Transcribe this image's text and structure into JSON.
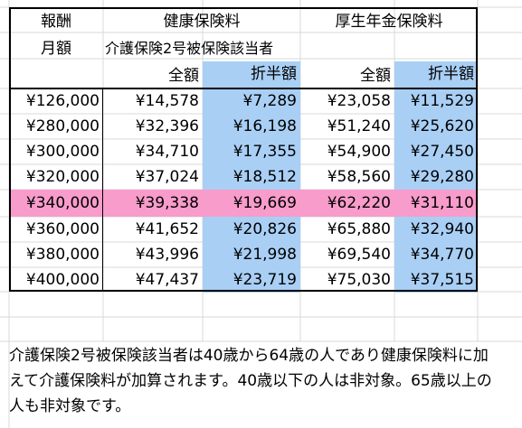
{
  "header": {
    "col_salary_top": "報酬",
    "col_salary_bottom": "月額",
    "health": "健康保険料",
    "pension": "厚生年金保険料",
    "care_note": "介護保険2号被保険該当者",
    "full": "全額",
    "half": "折半額"
  },
  "rows": [
    {
      "salary": "¥126,000",
      "h_full": "¥14,578",
      "h_half": "¥7,289",
      "p_full": "¥23,058",
      "p_half": "¥11,529"
    },
    {
      "salary": "¥280,000",
      "h_full": "¥32,396",
      "h_half": "¥16,198",
      "p_full": "¥51,240",
      "p_half": "¥25,620"
    },
    {
      "salary": "¥300,000",
      "h_full": "¥34,710",
      "h_half": "¥17,355",
      "p_full": "¥54,900",
      "p_half": "¥27,450"
    },
    {
      "salary": "¥320,000",
      "h_full": "¥37,024",
      "h_half": "¥18,512",
      "p_full": "¥58,560",
      "p_half": "¥29,280"
    },
    {
      "salary": "¥340,000",
      "h_full": "¥39,338",
      "h_half": "¥19,669",
      "p_full": "¥62,220",
      "p_half": "¥31,110"
    },
    {
      "salary": "¥360,000",
      "h_full": "¥41,652",
      "h_half": "¥20,826",
      "p_full": "¥65,880",
      "p_half": "¥32,940"
    },
    {
      "salary": "¥380,000",
      "h_full": "¥43,996",
      "h_half": "¥21,998",
      "p_full": "¥69,540",
      "p_half": "¥34,770"
    },
    {
      "salary": "¥400,000",
      "h_full": "¥47,437",
      "h_half": "¥23,719",
      "p_full": "¥75,030",
      "p_half": "¥37,515"
    }
  ],
  "note": {
    "line1": "介護保険2号被保険該当者は40歳から64歳の人であり健康保険料に加",
    "line2": "えて介護保険料が加算されます。40歳以下の人は非対象。65歳以上の",
    "line3": "人も非対象です。"
  },
  "colors": {
    "blue": "#a9cff5",
    "pink": "#f89ccb"
  }
}
